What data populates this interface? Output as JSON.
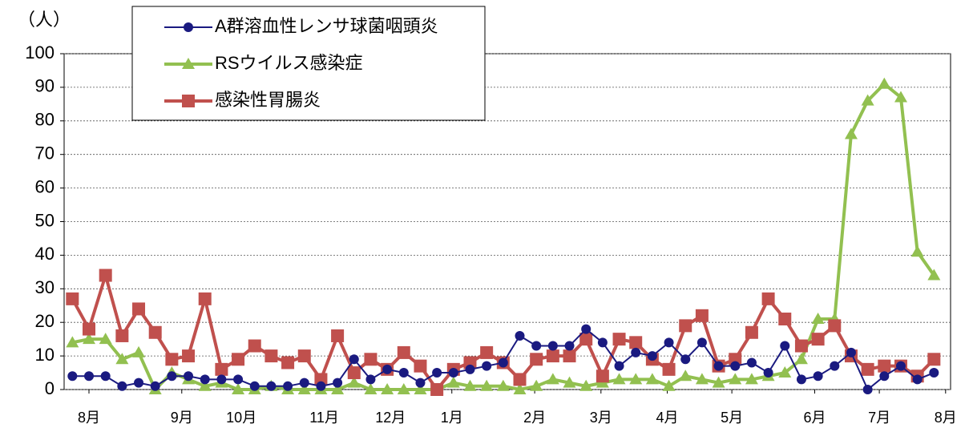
{
  "chart_data": {
    "type": "line",
    "y_unit_label": "（人）",
    "x": [
      0,
      1,
      2,
      3,
      4,
      5,
      6,
      7,
      8,
      9,
      10,
      11,
      12,
      13,
      14,
      15,
      16,
      17,
      18,
      19,
      20,
      21,
      22,
      23,
      24,
      25,
      26,
      27,
      28,
      29,
      30,
      31,
      32,
      33,
      34,
      35,
      36,
      37,
      38,
      39,
      40,
      41,
      42,
      43,
      44,
      45,
      46,
      47,
      48,
      49,
      50,
      51,
      52
    ],
    "xlim": [
      -0.5,
      53
    ],
    "xticks": [
      {
        "value": 1,
        "label": "8月"
      },
      {
        "value": 6.6,
        "label": "9月"
      },
      {
        "value": 10.2,
        "label": "10月"
      },
      {
        "value": 15.2,
        "label": "11月"
      },
      {
        "value": 19.2,
        "label": "12月"
      },
      {
        "value": 22.9,
        "label": "1月"
      },
      {
        "value": 27.9,
        "label": "2月"
      },
      {
        "value": 31.9,
        "label": "3月"
      },
      {
        "value": 35.9,
        "label": "4月"
      },
      {
        "value": 39.8,
        "label": "5月"
      },
      {
        "value": 44.8,
        "label": "6月"
      },
      {
        "value": 48.7,
        "label": "7月"
      },
      {
        "value": 52.7,
        "label": "8月"
      }
    ],
    "ylim": [
      0,
      100
    ],
    "yticks": [
      0,
      10,
      20,
      30,
      40,
      50,
      60,
      70,
      80,
      90,
      100
    ],
    "grid": true,
    "legend": "top-left",
    "series": [
      {
        "name": "A群溶血性レンサ球菌咽頭炎",
        "color": "#1a1a80",
        "marker": "circle",
        "values": [
          4,
          4,
          4,
          1,
          2,
          1,
          4,
          4,
          3,
          3,
          3,
          1,
          1,
          1,
          2,
          1,
          2,
          9,
          3,
          6,
          5,
          2,
          5,
          5,
          6,
          7,
          8,
          16,
          13,
          13,
          13,
          18,
          14,
          7,
          11,
          10,
          14,
          9,
          14,
          7,
          7,
          8,
          5,
          13,
          3,
          4,
          7,
          11,
          0,
          4,
          7,
          3,
          5
        ]
      },
      {
        "name": "RSウイルス感染症",
        "color": "#92c050",
        "marker": "triangle",
        "values": [
          14,
          15,
          15,
          9,
          11,
          0,
          5,
          3,
          1,
          2,
          0,
          0,
          1,
          0,
          0,
          0,
          0,
          2,
          0,
          0,
          0,
          0,
          0,
          2,
          1,
          1,
          1,
          0,
          1,
          3,
          2,
          1,
          2,
          3,
          3,
          3,
          1,
          4,
          3,
          2,
          3,
          3,
          4,
          5,
          9,
          21,
          21,
          76,
          86,
          91,
          87,
          41,
          34
        ]
      },
      {
        "name": "感染性胃腸炎",
        "color": "#c0504d",
        "marker": "square",
        "values": [
          27,
          18,
          34,
          16,
          24,
          17,
          9,
          10,
          27,
          6,
          9,
          13,
          10,
          8,
          10,
          3,
          16,
          5,
          9,
          6,
          11,
          7,
          0,
          6,
          8,
          11,
          8,
          3,
          9,
          10,
          10,
          15,
          4,
          15,
          14,
          9,
          6,
          19,
          22,
          7,
          9,
          17,
          27,
          21,
          13,
          15,
          19,
          10,
          6,
          7,
          7,
          4,
          9
        ]
      }
    ]
  }
}
